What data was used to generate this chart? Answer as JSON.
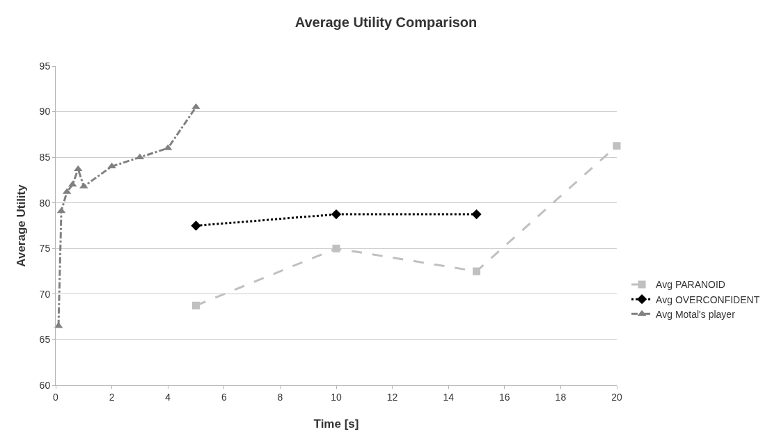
{
  "chart_data": {
    "type": "line",
    "title": "Average Utility Comparison",
    "xlabel": "Time [s]",
    "ylabel": "Average Utility",
    "series": [
      {
        "name": "Avg PARANOID",
        "color": "#c0c0c0",
        "line_style": "dashed",
        "marker": "square",
        "x": [
          5,
          10,
          15,
          20
        ],
        "values": [
          68.75,
          75,
          72.5,
          86.25
        ]
      },
      {
        "name": "Avg OVERCONFIDENT",
        "color": "#000000",
        "line_style": "dotted",
        "marker": "diamond",
        "x": [
          5,
          10,
          15
        ],
        "values": [
          77.5,
          78.75,
          78.75
        ]
      },
      {
        "name": "Avg Motal's player",
        "color": "#808080",
        "line_style": "dashdot",
        "marker": "triangle",
        "x": [
          0.1,
          0.2,
          0.4,
          0.6,
          0.8,
          1,
          2,
          3,
          4,
          5
        ],
        "values": [
          66.5,
          79.1,
          81.2,
          82,
          83.7,
          81.8,
          84,
          85,
          86,
          90.5
        ]
      }
    ],
    "xlim": [
      0,
      20
    ],
    "xticks": [
      0,
      2,
      4,
      6,
      8,
      10,
      12,
      14,
      16,
      18,
      20
    ],
    "ylim": [
      60,
      95
    ],
    "yticks": [
      60,
      65,
      70,
      75,
      80,
      85,
      90,
      95
    ],
    "grid": "y",
    "legend": "bottom right"
  }
}
